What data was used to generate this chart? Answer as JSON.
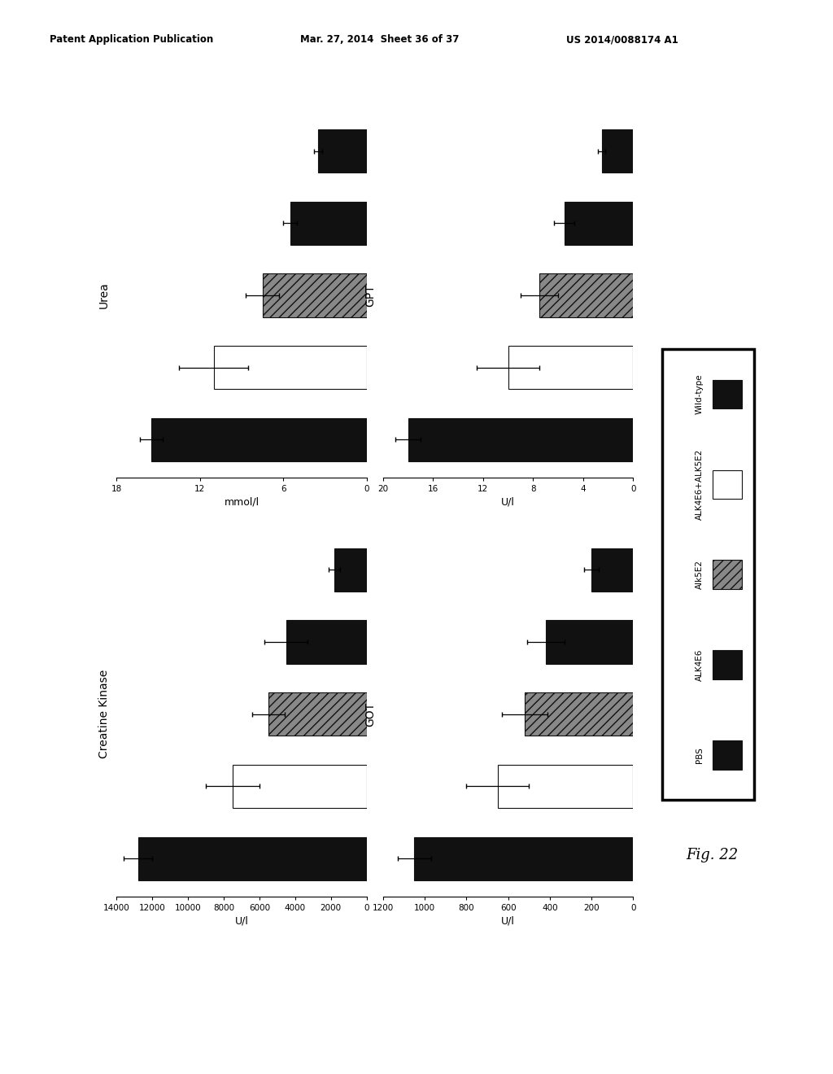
{
  "header_left": "Patent Application Publication",
  "header_mid": "Mar. 27, 2014  Sheet 36 of 37",
  "header_right": "US 2014/0088174 A1",
  "fig_label": "Fig. 22",
  "groups": [
    "Wild-type",
    "ALK4E6+ALK5E2",
    "Alk5E2",
    "ALK4E6",
    "PBS"
  ],
  "charts": [
    {
      "key": "urea",
      "title": "Urea",
      "xlabel": "mmol/l",
      "xlim_max": 18,
      "xticks": [
        18,
        12,
        6,
        0
      ],
      "xtick_labels": [
        "18",
        "12",
        "6",
        "0"
      ],
      "values": [
        15.5,
        11.0,
        7.5,
        5.5,
        3.5
      ],
      "errors": [
        0.8,
        2.5,
        1.2,
        0.5,
        0.3
      ]
    },
    {
      "key": "gpt",
      "title": "GPT",
      "xlabel": "U/l",
      "xlim_max": 20,
      "xticks": [
        20,
        16,
        12,
        8,
        4,
        0
      ],
      "xtick_labels": [
        "20",
        "16",
        "12",
        "8",
        "4",
        "0"
      ],
      "values": [
        18.0,
        10.0,
        7.5,
        5.5,
        2.5
      ],
      "errors": [
        1.0,
        2.5,
        1.5,
        0.8,
        0.3
      ]
    },
    {
      "key": "creatine_kinase",
      "title": "Creatine Kinase",
      "xlabel": "U/l",
      "xlim_max": 14000,
      "xticks": [
        14000,
        12000,
        10000,
        8000,
        6000,
        4000,
        2000,
        0
      ],
      "xtick_labels": [
        "14000",
        "12000",
        "10000",
        "8000",
        "6000",
        "4000",
        "2000",
        "0"
      ],
      "values": [
        12800,
        7500,
        5500,
        4500,
        1800
      ],
      "errors": [
        800,
        1500,
        900,
        1200,
        300
      ]
    },
    {
      "key": "got",
      "title": "GOT",
      "xlabel": "U/l",
      "xlim_max": 1200,
      "xticks": [
        1200,
        1000,
        800,
        600,
        400,
        200,
        0
      ],
      "xtick_labels": [
        "1200",
        "1000",
        "800",
        "600",
        "400",
        "200",
        "0"
      ],
      "values": [
        1050,
        650,
        520,
        420,
        200
      ],
      "errors": [
        80,
        150,
        110,
        90,
        35
      ]
    }
  ],
  "bar_styles": [
    {
      "color": "#111111",
      "edgecolor": "#111111",
      "hatch": ""
    },
    {
      "color": "#ffffff",
      "edgecolor": "#111111",
      "hatch": ""
    },
    {
      "color": "#888888",
      "edgecolor": "#111111",
      "hatch": "///"
    },
    {
      "color": "#111111",
      "edgecolor": "#111111",
      "hatch": ""
    },
    {
      "color": "#111111",
      "edgecolor": "#111111",
      "hatch": ""
    }
  ],
  "legend_labels": [
    "PBS",
    "ALK4E6",
    "Alk5E2",
    "ALK4E6+ALK5E2",
    "Wild-type"
  ],
  "legend_styles": [
    {
      "color": "#111111",
      "edgecolor": "#111111",
      "hatch": ""
    },
    {
      "color": "#111111",
      "edgecolor": "#111111",
      "hatch": ""
    },
    {
      "color": "#888888",
      "edgecolor": "#111111",
      "hatch": "///"
    },
    {
      "color": "#ffffff",
      "edgecolor": "#111111",
      "hatch": ""
    },
    {
      "color": "#111111",
      "edgecolor": "#111111",
      "hatch": ""
    }
  ],
  "background_color": "#ffffff"
}
